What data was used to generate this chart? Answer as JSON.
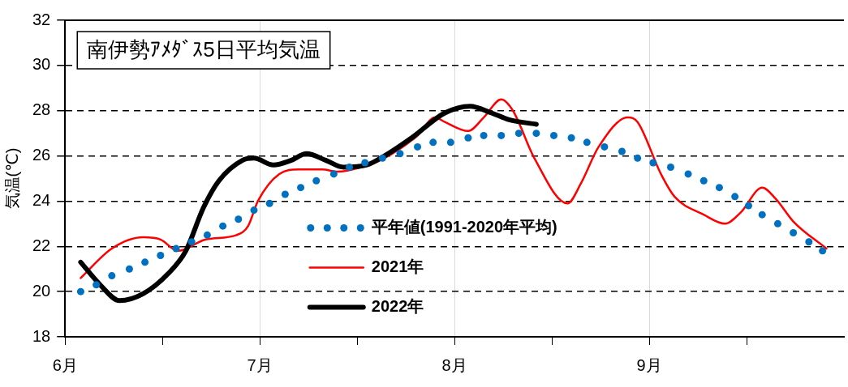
{
  "chart_data": {
    "type": "line",
    "title": "南伊勢ｱﾒﾀﾞｽ5日平均気温",
    "ylabel": "気温(℃)",
    "xlim": [
      6,
      10
    ],
    "xticks": [
      {
        "value": 6,
        "label": "6月"
      },
      {
        "value": 6.5,
        "label": null
      },
      {
        "value": 7,
        "label": "7月"
      },
      {
        "value": 7.5,
        "label": null
      },
      {
        "value": 8,
        "label": "8月"
      },
      {
        "value": 8.5,
        "label": null
      },
      {
        "value": 9,
        "label": "9月"
      },
      {
        "value": 9.5,
        "label": null
      }
    ],
    "ylim": [
      18,
      32
    ],
    "yticks": [
      18,
      20,
      22,
      24,
      26,
      28,
      30,
      32
    ],
    "grid": true,
    "legend": "bottom",
    "series": [
      {
        "name": "平年値(1991-2020年平均)",
        "color": "#0070c0",
        "type": "scatter",
        "marker": "circle",
        "x": [
          6.08,
          6.16,
          6.24,
          6.33,
          6.41,
          6.49,
          6.57,
          6.65,
          6.73,
          6.81,
          6.89,
          6.97,
          7.05,
          7.13,
          7.21,
          7.29,
          7.38,
          7.46,
          7.54,
          7.63,
          7.72,
          7.81,
          7.89,
          7.98,
          8.07,
          8.15,
          8.24,
          8.33,
          8.42,
          8.51,
          8.6,
          8.68,
          8.77,
          8.86,
          8.94,
          9.02,
          9.11,
          9.2,
          9.28,
          9.36,
          9.44,
          9.51,
          9.58,
          9.66,
          9.74,
          9.82,
          9.89
        ],
        "values": [
          20.0,
          20.3,
          20.7,
          21.0,
          21.3,
          21.6,
          21.9,
          22.2,
          22.5,
          22.9,
          23.2,
          23.6,
          23.9,
          24.3,
          24.6,
          24.9,
          25.2,
          25.5,
          25.7,
          25.9,
          26.1,
          26.4,
          26.6,
          26.6,
          26.8,
          26.9,
          26.9,
          27.0,
          27.0,
          26.9,
          26.8,
          26.6,
          26.4,
          26.2,
          25.9,
          25.7,
          25.5,
          25.2,
          24.9,
          24.6,
          24.2,
          23.8,
          23.4,
          23.0,
          22.6,
          22.2,
          21.8
        ]
      },
      {
        "name": "2021年",
        "color": "#ff0000",
        "line_style": "solid",
        "x": [
          6.08,
          6.24,
          6.4,
          6.49,
          6.58,
          6.72,
          6.88,
          6.94,
          6.99,
          7.1,
          7.2,
          7.32,
          7.4,
          7.52,
          7.64,
          7.81,
          7.9,
          7.95,
          8.07,
          8.15,
          8.24,
          8.3,
          8.41,
          8.58,
          8.65,
          8.74,
          8.89,
          8.94,
          9.06,
          9.13,
          9.28,
          9.39,
          9.47,
          9.58,
          9.65,
          9.74,
          9.91
        ],
        "values": [
          20.6,
          21.9,
          22.4,
          22.3,
          21.8,
          22.3,
          22.5,
          22.9,
          24.0,
          25.2,
          25.4,
          25.4,
          25.3,
          25.5,
          25.9,
          26.9,
          27.7,
          27.5,
          27.1,
          27.7,
          28.5,
          28.0,
          25.9,
          23.9,
          24.8,
          26.4,
          27.7,
          27.5,
          25.2,
          24.2,
          23.4,
          23.0,
          23.5,
          24.6,
          24.1,
          23.1,
          21.9
        ]
      },
      {
        "name": "2022年",
        "color": "#000000",
        "line_style": "solid",
        "x": [
          6.08,
          6.18,
          6.28,
          6.4,
          6.53,
          6.62,
          6.71,
          6.79,
          6.91,
          6.97,
          7.07,
          7.16,
          7.24,
          7.34,
          7.43,
          7.55,
          7.64,
          7.78,
          7.95,
          8.08,
          8.19,
          8.28,
          8.42
        ],
        "values": [
          21.3,
          20.3,
          19.6,
          19.9,
          20.8,
          21.8,
          23.7,
          24.9,
          25.8,
          25.9,
          25.6,
          25.8,
          26.1,
          25.8,
          25.5,
          25.6,
          26.0,
          26.8,
          27.9,
          28.2,
          27.9,
          27.6,
          27.4
        ]
      }
    ]
  }
}
